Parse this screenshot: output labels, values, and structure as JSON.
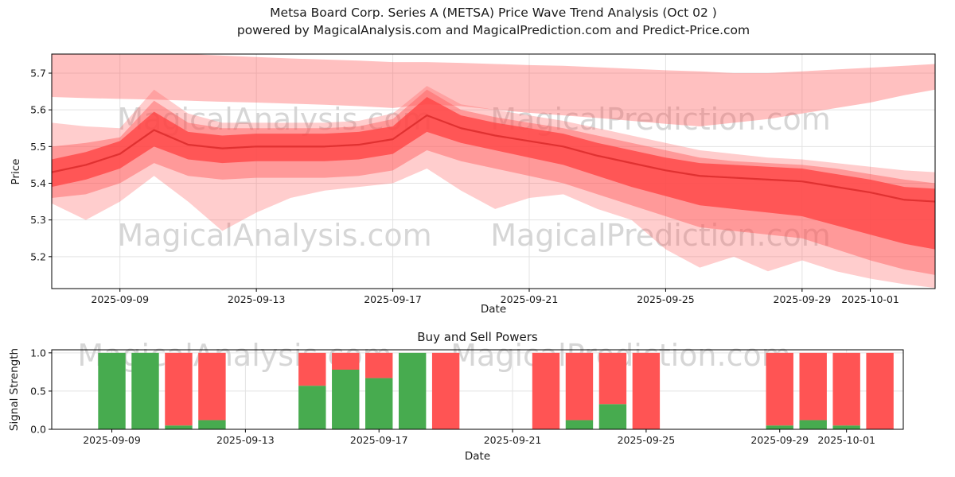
{
  "title": {
    "line1": "Metsa Board Corp. Series A (METSA) Price Wave Trend Analysis (Oct 02 )",
    "line2": "powered by MagicalAnalysis.com and MagicalPrediction.com and Predict-Price.com"
  },
  "watermark": {
    "texts": [
      "MagicalAnalysis.com",
      "MagicalPrediction.com"
    ],
    "color": "#d2d2d2",
    "font_size": 38
  },
  "colors": {
    "grid": "#e3e3e3",
    "spine": "#000000",
    "text": "#1a1a1a",
    "band_red": "#ff5a5a",
    "line_red": "#e03131",
    "buy_green": "#47ab4f",
    "sell_red": "#ff5454"
  },
  "chart_data": [
    {
      "type": "area",
      "name": "price-wave-trend",
      "xlabel": "Date",
      "ylabel": "Price",
      "x_base_date": "2025-09-07",
      "xlim": [
        0,
        25.9
      ],
      "ylim": [
        5.113,
        5.752
      ],
      "grid": true,
      "yticks": [
        {
          "v": 5.2,
          "label": "5.2"
        },
        {
          "v": 5.3,
          "label": "5.3"
        },
        {
          "v": 5.4,
          "label": "5.4"
        },
        {
          "v": 5.5,
          "label": "5.5"
        },
        {
          "v": 5.6,
          "label": "5.6"
        },
        {
          "v": 5.7,
          "label": "5.7"
        }
      ],
      "xticks": [
        {
          "x": 2,
          "label": "2025-09-09"
        },
        {
          "x": 6,
          "label": "2025-09-13"
        },
        {
          "x": 10,
          "label": "2025-09-17"
        },
        {
          "x": 14,
          "label": "2025-09-21"
        },
        {
          "x": 18,
          "label": "2025-09-25"
        },
        {
          "x": 22,
          "label": "2025-09-29"
        },
        {
          "x": 24,
          "label": "2025-10-01"
        }
      ],
      "x": [
        0,
        1,
        2,
        3,
        4,
        5,
        6,
        7,
        8,
        9,
        10,
        11,
        12,
        13,
        14,
        15,
        16,
        17,
        18,
        19,
        20,
        21,
        22,
        23,
        24,
        25,
        25.9
      ],
      "central_line": {
        "name": "price-trend-line",
        "color": "#e03131",
        "width": 2.2,
        "values": [
          5.43,
          5.45,
          5.48,
          5.545,
          5.505,
          5.495,
          5.5,
          5.5,
          5.5,
          5.505,
          5.52,
          5.585,
          5.55,
          5.53,
          5.515,
          5.5,
          5.475,
          5.455,
          5.435,
          5.42,
          5.415,
          5.41,
          5.405,
          5.39,
          5.375,
          5.355,
          5.35
        ]
      },
      "bands": [
        {
          "name": "upper-strip",
          "color": "#ff5a5a",
          "opacity": 0.38,
          "upper": [
            5.78,
            5.77,
            5.765,
            5.758,
            5.752,
            5.748,
            5.744,
            5.74,
            5.737,
            5.734,
            5.73,
            5.73,
            5.728,
            5.725,
            5.722,
            5.72,
            5.716,
            5.712,
            5.708,
            5.705,
            5.7,
            5.7,
            5.705,
            5.71,
            5.715,
            5.72,
            5.725
          ],
          "lower": [
            5.635,
            5.632,
            5.63,
            5.628,
            5.625,
            5.622,
            5.62,
            5.617,
            5.614,
            5.61,
            5.605,
            5.615,
            5.61,
            5.6,
            5.592,
            5.585,
            5.578,
            5.57,
            5.562,
            5.555,
            5.565,
            5.575,
            5.59,
            5.605,
            5.62,
            5.64,
            5.655
          ]
        },
        {
          "name": "outer-envelope",
          "color": "#ff5a5a",
          "opacity": 0.3,
          "upper": [
            5.565,
            5.555,
            5.55,
            5.655,
            5.59,
            5.565,
            5.565,
            5.565,
            5.565,
            5.57,
            5.59,
            5.665,
            5.615,
            5.6,
            5.585,
            5.57,
            5.55,
            5.53,
            5.51,
            5.49,
            5.48,
            5.47,
            5.465,
            5.455,
            5.445,
            5.435,
            5.43
          ],
          "lower": [
            5.345,
            5.3,
            5.35,
            5.42,
            5.35,
            5.27,
            5.32,
            5.36,
            5.38,
            5.39,
            5.4,
            5.44,
            5.38,
            5.33,
            5.36,
            5.37,
            5.33,
            5.3,
            5.22,
            5.17,
            5.2,
            5.16,
            5.19,
            5.16,
            5.14,
            5.125,
            5.115
          ]
        },
        {
          "name": "mid-band",
          "color": "#ff5a5a",
          "opacity": 0.45,
          "upper": [
            5.5,
            5.51,
            5.525,
            5.625,
            5.565,
            5.55,
            5.55,
            5.55,
            5.55,
            5.555,
            5.575,
            5.655,
            5.6,
            5.58,
            5.565,
            5.55,
            5.53,
            5.51,
            5.49,
            5.47,
            5.46,
            5.455,
            5.45,
            5.44,
            5.425,
            5.41,
            5.4
          ],
          "lower": [
            5.36,
            5.37,
            5.4,
            5.455,
            5.42,
            5.41,
            5.415,
            5.415,
            5.415,
            5.42,
            5.435,
            5.49,
            5.46,
            5.44,
            5.42,
            5.4,
            5.37,
            5.34,
            5.31,
            5.28,
            5.27,
            5.26,
            5.25,
            5.22,
            5.19,
            5.165,
            5.15
          ]
        },
        {
          "name": "inner-band",
          "color": "#ff4040",
          "opacity": 0.75,
          "upper": [
            5.465,
            5.485,
            5.515,
            5.595,
            5.54,
            5.53,
            5.535,
            5.535,
            5.535,
            5.54,
            5.555,
            5.635,
            5.585,
            5.565,
            5.55,
            5.535,
            5.51,
            5.49,
            5.47,
            5.455,
            5.45,
            5.445,
            5.44,
            5.425,
            5.41,
            5.39,
            5.385
          ],
          "lower": [
            5.39,
            5.41,
            5.44,
            5.5,
            5.465,
            5.455,
            5.46,
            5.46,
            5.46,
            5.465,
            5.48,
            5.54,
            5.51,
            5.49,
            5.47,
            5.45,
            5.42,
            5.39,
            5.365,
            5.34,
            5.33,
            5.32,
            5.31,
            5.285,
            5.26,
            5.235,
            5.22
          ]
        }
      ]
    },
    {
      "type": "bar",
      "name": "buy-sell-powers",
      "title": "Buy and Sell Powers",
      "xlabel": "Date",
      "ylabel": "Signal Strength",
      "xlim": [
        0.2,
        25.7
      ],
      "ylim": [
        0,
        1.04
      ],
      "grid": true,
      "bar_width_days": 0.82,
      "colors": {
        "buy": "#47ab4f",
        "sell": "#ff5454"
      },
      "yticks": [
        {
          "v": 0.0,
          "label": "0.0"
        },
        {
          "v": 0.5,
          "label": "0.5"
        },
        {
          "v": 1.0,
          "label": "1.0"
        }
      ],
      "xticks": [
        {
          "x": 2,
          "label": "2025-09-09"
        },
        {
          "x": 6,
          "label": "2025-09-13"
        },
        {
          "x": 10,
          "label": "2025-09-17"
        },
        {
          "x": 14,
          "label": "2025-09-21"
        },
        {
          "x": 18,
          "label": "2025-09-25"
        },
        {
          "x": 22,
          "label": "2025-09-29"
        },
        {
          "x": 24,
          "label": "2025-10-01"
        }
      ],
      "bars": [
        {
          "date": "2025-09-09",
          "x": 2,
          "buy": 1.0,
          "sell": 0.0
        },
        {
          "date": "2025-09-10",
          "x": 3,
          "buy": 1.0,
          "sell": 0.0
        },
        {
          "date": "2025-09-11",
          "x": 4,
          "buy": 0.05,
          "sell": 0.95
        },
        {
          "date": "2025-09-12",
          "x": 5,
          "buy": 0.12,
          "sell": 0.88
        },
        {
          "date": "2025-09-15",
          "x": 8,
          "buy": 0.57,
          "sell": 0.43
        },
        {
          "date": "2025-09-16",
          "x": 9,
          "buy": 0.78,
          "sell": 0.22
        },
        {
          "date": "2025-09-17",
          "x": 10,
          "buy": 0.67,
          "sell": 0.33
        },
        {
          "date": "2025-09-18",
          "x": 11,
          "buy": 1.0,
          "sell": 0.0
        },
        {
          "date": "2025-09-19",
          "x": 12,
          "buy": 0.0,
          "sell": 1.0
        },
        {
          "date": "2025-09-22",
          "x": 15,
          "buy": 0.0,
          "sell": 1.0
        },
        {
          "date": "2025-09-23",
          "x": 16,
          "buy": 0.12,
          "sell": 0.88
        },
        {
          "date": "2025-09-24",
          "x": 17,
          "buy": 0.33,
          "sell": 0.67
        },
        {
          "date": "2025-09-25",
          "x": 18,
          "buy": 0.0,
          "sell": 1.0
        },
        {
          "date": "2025-09-29",
          "x": 22,
          "buy": 0.05,
          "sell": 0.95
        },
        {
          "date": "2025-09-30",
          "x": 23,
          "buy": 0.12,
          "sell": 0.88
        },
        {
          "date": "2025-10-01",
          "x": 24,
          "buy": 0.05,
          "sell": 0.95
        },
        {
          "date": "2025-10-02",
          "x": 25,
          "buy": 0.0,
          "sell": 1.0
        }
      ]
    }
  ]
}
